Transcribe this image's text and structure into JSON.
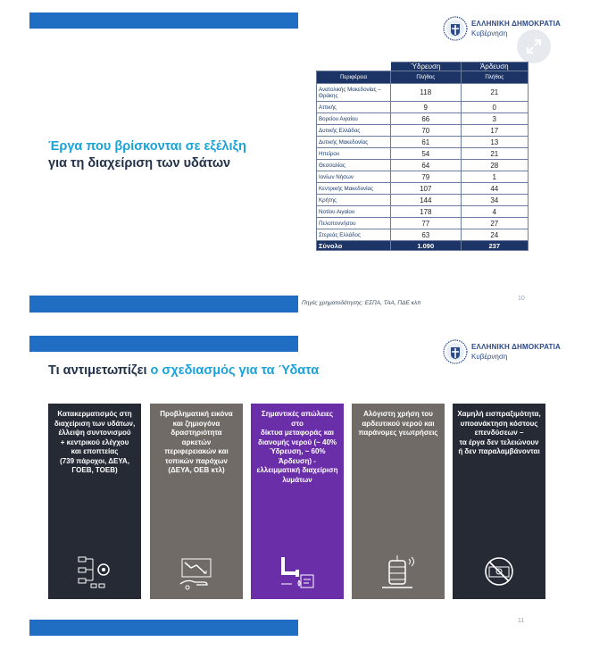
{
  "header": {
    "gov_name": "ΕΛΛΗΝΙΚΗ ΔΗΜΟΚΡΑΤΙΑ",
    "gov_sub": "Κυβέρνηση"
  },
  "slide1": {
    "title_line1": "Έργα που βρίσκονται σε εξέλιξη",
    "title_line2": "για τη διαχείριση των υδάτων",
    "table": {
      "group_headers": [
        "Ύδρευση",
        "Άρδευση"
      ],
      "col_headers": [
        "Περιφέρεια",
        "Πλήθος",
        "Πλήθος"
      ],
      "rows": [
        {
          "region": "Ανατολικής Μακεδονίας – Θράκης",
          "water": "118",
          "irrigation": "21"
        },
        {
          "region": "Αττικής",
          "water": "9",
          "irrigation": "0"
        },
        {
          "region": "Βορείου Αιγαίου",
          "water": "66",
          "irrigation": "3"
        },
        {
          "region": "Δυτικής Ελλάδος",
          "water": "70",
          "irrigation": "17"
        },
        {
          "region": "Δυτικής Μακεδονίας",
          "water": "61",
          "irrigation": "13"
        },
        {
          "region": "Ηπείρου",
          "water": "54",
          "irrigation": "21"
        },
        {
          "region": "Θεσσαλίας",
          "water": "64",
          "irrigation": "28"
        },
        {
          "region": "Ιονίων Νήσων",
          "water": "79",
          "irrigation": "1"
        },
        {
          "region": "Κεντρικής Μακεδονίας",
          "water": "107",
          "irrigation": "44"
        },
        {
          "region": "Κρήτης",
          "water": "144",
          "irrigation": "34"
        },
        {
          "region": "Νοτίου Αιγαίου",
          "water": "178",
          "irrigation": "4"
        },
        {
          "region": "Πελοποννήσου",
          "water": "77",
          "irrigation": "27"
        },
        {
          "region": "Στερεάς Ελλάδος",
          "water": "63",
          "irrigation": "24"
        }
      ],
      "total": {
        "label": "Σύνολο",
        "water": "1.090",
        "irrigation": "237"
      }
    },
    "source": "Πηγές χρηματοδότησης: ΕΣΠΑ, ΤΑΑ, ΠΔΕ κλπ",
    "page_number": "10"
  },
  "slide2": {
    "title_prefix": "Τι αντιμετωπίζει ",
    "title_accent": "ο σχεδιασμός για τα Ύδατα",
    "cards": [
      {
        "text": "Κατακερματισμός στη\nδιαχείριση των υδάτων,\nέλλειψη συντονισμού\n+ κεντρικού ελέγχου\nκαι εποπτείας\n(739 πάροχοι, ΔΕΥΑ,\nΓΟΕΒ, ΤΟΕΒ)",
        "color": "#252a35",
        "icon": "network-flowchart-icon"
      },
      {
        "text": "Προβληματική εικόνα\nκαι ζημιογόνα\nδραστηριότητα\nαρκετών\nπεριφερειακών και\nτοπικών παρόχων\n(ΔΕΥΑ, ΟΕΒ κτλ)",
        "color": "#716b68",
        "icon": "loss-chart-hand-icon"
      },
      {
        "text": "Σημαντικές απώλειες στο\nδίκτυα μεταφοράς και\nδιανομής νερού (~ 40%\nΎδρευση, ~ 60%\nΆρδευση) -\nελλειμματική διαχείριση\nλυμάτων",
        "color": "#6a2ea8",
        "icon": "pipe-leak-icon"
      },
      {
        "text": "Αλόγιστη χρήση του\nαρδευτικού νερού και\nπαράνομες γεωτρήσεις",
        "color": "#716b68",
        "icon": "water-well-icon"
      },
      {
        "text": "Χαμηλή εισπραξιμότητα,\nυποανάκτηση κόστους\nεπενδύσεων –\nτα έργα δεν τελειώνουν\nή δεν παραλαμβάνονται",
        "color": "#252a35",
        "icon": "no-money-icon"
      }
    ],
    "page_number": "11"
  }
}
